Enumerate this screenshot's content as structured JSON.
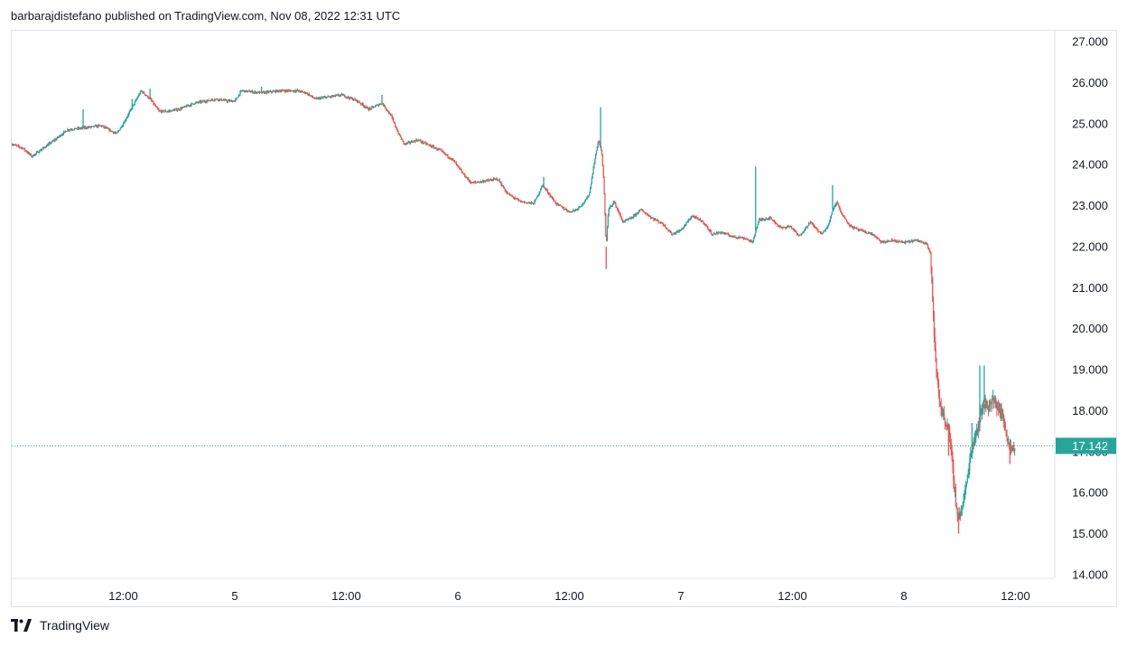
{
  "header": {
    "published": "barbarajdistefano published on TradingView.com, Nov 08, 2022 12:31 UTC"
  },
  "footer": {
    "brand": "TradingView"
  },
  "colors": {
    "up": "#26a69a",
    "down": "#ef5350",
    "last_price_badge": "#26a69a",
    "last_price_line": "#26a69a",
    "grid_border": "#e0e3eb"
  },
  "chart_data": {
    "type": "candlestick",
    "grid": false,
    "ylim": [
      14,
      27
    ],
    "y_ticks": [
      "27.000",
      "26.000",
      "25.000",
      "24.000",
      "23.000",
      "22.000",
      "21.000",
      "20.000",
      "19.000",
      "18.000",
      "17.000",
      "16.000",
      "15.000",
      "14.000"
    ],
    "x_ticks": [
      {
        "label": "12:00",
        "x": 0.5
      },
      {
        "label": "5",
        "x": 1.0
      },
      {
        "label": "12:00",
        "x": 1.5
      },
      {
        "label": "6",
        "x": 2.0
      },
      {
        "label": "12:00",
        "x": 2.5
      },
      {
        "label": "7",
        "x": 3.0
      },
      {
        "label": "12:00",
        "x": 3.5
      },
      {
        "label": "8",
        "x": 4.0
      },
      {
        "label": "12:00",
        "x": 4.5
      }
    ],
    "x_unit": "days since Nov 4 00:00 (approx)",
    "xlim": [
      0.0,
      4.7
    ],
    "last_price": 17.142,
    "last_price_label": "17.142",
    "price_path": [
      [
        0.0,
        24.5
      ],
      [
        0.05,
        24.4
      ],
      [
        0.09,
        24.2
      ],
      [
        0.18,
        24.55
      ],
      [
        0.25,
        24.85
      ],
      [
        0.33,
        24.9
      ],
      [
        0.4,
        24.95
      ],
      [
        0.47,
        24.75
      ],
      [
        0.5,
        25.0
      ],
      [
        0.55,
        25.5
      ],
      [
        0.58,
        25.8
      ],
      [
        0.62,
        25.6
      ],
      [
        0.66,
        25.3
      ],
      [
        0.7,
        25.3
      ],
      [
        0.75,
        25.35
      ],
      [
        0.82,
        25.5
      ],
      [
        0.92,
        25.6
      ],
      [
        0.97,
        25.55
      ],
      [
        1.0,
        25.55
      ],
      [
        1.03,
        25.8
      ],
      [
        1.12,
        25.75
      ],
      [
        1.2,
        25.8
      ],
      [
        1.28,
        25.8
      ],
      [
        1.32,
        25.75
      ],
      [
        1.36,
        25.6
      ],
      [
        1.42,
        25.65
      ],
      [
        1.48,
        25.7
      ],
      [
        1.55,
        25.55
      ],
      [
        1.6,
        25.35
      ],
      [
        1.66,
        25.5
      ],
      [
        1.7,
        25.2
      ],
      [
        1.73,
        24.8
      ],
      [
        1.76,
        24.5
      ],
      [
        1.82,
        24.6
      ],
      [
        1.88,
        24.45
      ],
      [
        1.92,
        24.35
      ],
      [
        1.98,
        24.1
      ],
      [
        2.02,
        23.8
      ],
      [
        2.06,
        23.55
      ],
      [
        2.12,
        23.6
      ],
      [
        2.18,
        23.65
      ],
      [
        2.22,
        23.3
      ],
      [
        2.28,
        23.1
      ],
      [
        2.34,
        23.05
      ],
      [
        2.38,
        23.5
      ],
      [
        2.44,
        23.05
      ],
      [
        2.5,
        22.85
      ],
      [
        2.53,
        22.9
      ],
      [
        2.57,
        23.1
      ],
      [
        2.59,
        23.3
      ],
      [
        2.61,
        24.0
      ],
      [
        2.63,
        24.6
      ],
      [
        2.645,
        24.3
      ],
      [
        2.655,
        23.5
      ],
      [
        2.665,
        22.0
      ],
      [
        2.675,
        22.9
      ],
      [
        2.7,
        23.1
      ],
      [
        2.74,
        22.6
      ],
      [
        2.78,
        22.7
      ],
      [
        2.82,
        22.9
      ],
      [
        2.87,
        22.7
      ],
      [
        2.92,
        22.55
      ],
      [
        2.96,
        22.3
      ],
      [
        3.0,
        22.4
      ],
      [
        3.05,
        22.75
      ],
      [
        3.1,
        22.6
      ],
      [
        3.14,
        22.3
      ],
      [
        3.18,
        22.35
      ],
      [
        3.23,
        22.25
      ],
      [
        3.29,
        22.2
      ],
      [
        3.32,
        22.1
      ],
      [
        3.35,
        22.65
      ],
      [
        3.4,
        22.7
      ],
      [
        3.45,
        22.45
      ],
      [
        3.49,
        22.5
      ],
      [
        3.53,
        22.25
      ],
      [
        3.58,
        22.6
      ],
      [
        3.63,
        22.3
      ],
      [
        3.66,
        22.5
      ],
      [
        3.68,
        22.9
      ],
      [
        3.7,
        23.1
      ],
      [
        3.72,
        22.8
      ],
      [
        3.76,
        22.5
      ],
      [
        3.8,
        22.4
      ],
      [
        3.86,
        22.3
      ],
      [
        3.9,
        22.1
      ],
      [
        3.95,
        22.15
      ],
      [
        4.0,
        22.1
      ],
      [
        4.05,
        22.15
      ],
      [
        4.1,
        22.1
      ],
      [
        4.12,
        21.8
      ],
      [
        4.13,
        20.5
      ],
      [
        4.14,
        19.3
      ],
      [
        4.16,
        18.2
      ],
      [
        4.18,
        17.8
      ],
      [
        4.2,
        17.6
      ],
      [
        4.22,
        16.5
      ],
      [
        4.24,
        15.4
      ],
      [
        4.26,
        15.6
      ],
      [
        4.28,
        16.2
      ],
      [
        4.3,
        17.0
      ],
      [
        4.32,
        17.4
      ],
      [
        4.34,
        17.8
      ],
      [
        4.36,
        18.2
      ],
      [
        4.38,
        18.1
      ],
      [
        4.4,
        18.25
      ],
      [
        4.42,
        18.1
      ],
      [
        4.44,
        17.9
      ],
      [
        4.46,
        17.4
      ],
      [
        4.48,
        17.05
      ],
      [
        4.5,
        17.15
      ]
    ],
    "spikes": [
      [
        0.32,
        25.35
      ],
      [
        0.54,
        25.6
      ],
      [
        0.62,
        25.85
      ],
      [
        1.12,
        25.9
      ],
      [
        1.66,
        25.7
      ],
      [
        2.385,
        23.7
      ],
      [
        2.64,
        25.4
      ],
      [
        2.665,
        21.45
      ],
      [
        3.335,
        23.95
      ],
      [
        3.68,
        23.5
      ],
      [
        4.125,
        21.2
      ],
      [
        4.2,
        16.9
      ],
      [
        4.245,
        15.0
      ],
      [
        4.305,
        17.7
      ],
      [
        4.34,
        19.1
      ],
      [
        4.36,
        19.1
      ],
      [
        4.475,
        16.7
      ]
    ]
  }
}
